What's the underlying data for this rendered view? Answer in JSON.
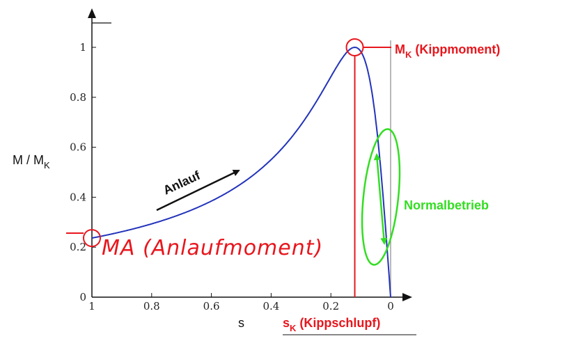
{
  "chart_data": {
    "type": "line",
    "title": "",
    "xlabel": "s",
    "ylabel_main": "M / M",
    "ylabel_sub": "K",
    "xlim": [
      1,
      0
    ],
    "ylim": [
      0,
      1.1
    ],
    "x_ticks": [
      1,
      0.8,
      0.6,
      0.4,
      0.2,
      0
    ],
    "x_tick_labels": [
      "1",
      "0.8",
      "0.6",
      "0.4",
      "0.2",
      "0"
    ],
    "y_ticks": [
      0,
      0.2,
      0.4,
      0.6,
      0.8,
      1
    ],
    "y_tick_labels": [
      "0",
      "0.2",
      "0.4",
      "0.6",
      "0.8",
      "1"
    ],
    "grid": false,
    "series": [
      {
        "color": "#2233bb",
        "kloss_sk": 0.12,
        "x": [
          1,
          0.9,
          0.8,
          0.7,
          0.6,
          0.5,
          0.4,
          0.3,
          0.25,
          0.2,
          0.16,
          0.12,
          0.1,
          0.08,
          0.06,
          0.04,
          0.02,
          0.01,
          0
        ],
        "y": [
          0.24,
          0.26,
          0.3,
          0.34,
          0.39,
          0.46,
          0.55,
          0.69,
          0.78,
          0.88,
          0.96,
          1.0,
          0.98,
          0.92,
          0.81,
          0.6,
          0.33,
          0.17,
          0
        ]
      }
    ],
    "annotations": {
      "mk_main": "M",
      "mk_sub": "K",
      "mk_text": " (Kippmoment)",
      "sk_main": "s",
      "sk_sub": "K",
      "sk_text": " (Kippschlupf)",
      "anlauf": "Anlauf",
      "normalbetrieb": "Normalbetrieb",
      "ma_handwritten": "MA (Anlaufmoment)",
      "color_red": "#e8161d",
      "color_green": "#33dd22",
      "color_black": "#111111"
    }
  }
}
